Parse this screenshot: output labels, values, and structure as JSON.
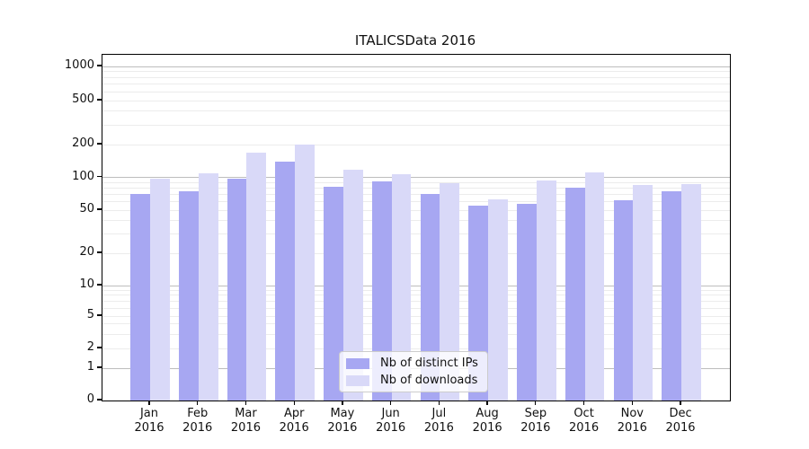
{
  "title": "ITALICSData 2016",
  "colors": {
    "bar_distinct_ips": "#a7a7f2",
    "bar_downloads": "#d9d9f8",
    "grid_major": "#bdbdbd",
    "grid_minor": "#ececec",
    "axis": "#000000",
    "legend_border": "#cccccc"
  },
  "legend": {
    "items": [
      {
        "label": "Nb of distinct IPs"
      },
      {
        "label": "Nb of downloads"
      }
    ]
  },
  "chart_data": {
    "type": "bar",
    "title": "ITALICSData 2016",
    "categories": [
      "Jan 2016",
      "Feb 2016",
      "Mar 2016",
      "Apr 2016",
      "May 2016",
      "Jun 2016",
      "Jul 2016",
      "Aug 2016",
      "Sep 2016",
      "Oct 2016",
      "Nov 2016",
      "Dec 2016"
    ],
    "series": [
      {
        "name": "Nb of distinct IPs",
        "color": "#a7a7f2",
        "values": [
          71,
          74,
          97,
          140,
          82,
          92,
          71,
          55,
          57,
          80,
          62,
          75
        ]
      },
      {
        "name": "Nb of downloads",
        "color": "#d9d9f8",
        "values": [
          97,
          108,
          170,
          200,
          118,
          106,
          89,
          63,
          94,
          110,
          85,
          87
        ]
      }
    ],
    "xlabel": "",
    "ylabel": "",
    "yscale": "symlog",
    "y_ticks": [
      0,
      1,
      2,
      5,
      10,
      20,
      50,
      100,
      200,
      500,
      1000
    ],
    "ylim": [
      0,
      1300
    ],
    "grid": true,
    "legend_position": "lower center inside plot"
  }
}
